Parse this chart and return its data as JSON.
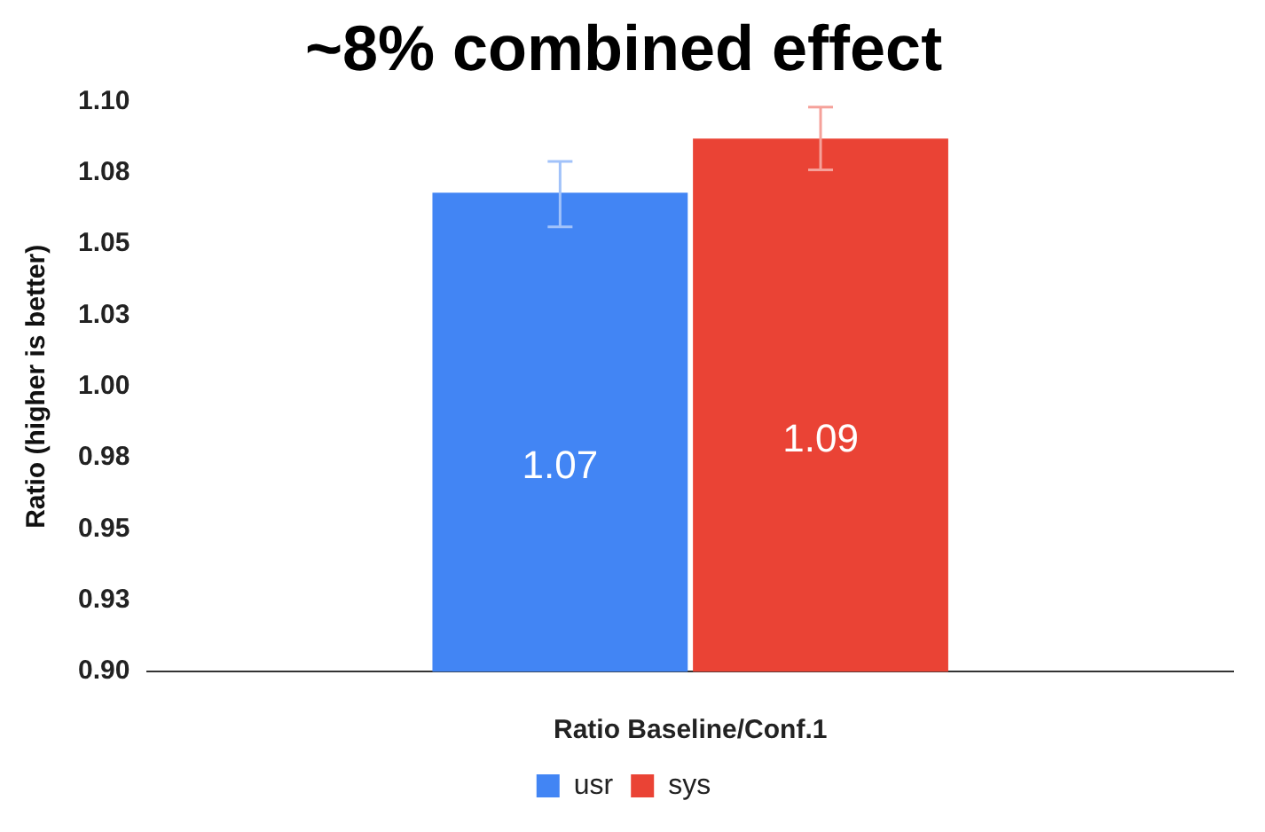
{
  "chart_data": {
    "type": "bar",
    "title": "~8% combined effect",
    "xlabel": "Ratio Baseline/Conf.1",
    "ylabel": "Ratio (higher is better)",
    "categories": [
      null
    ],
    "series": [
      {
        "name": "usr",
        "color": "#4285f4",
        "values": [
          1.068
        ],
        "value_labels": [
          "1.07"
        ],
        "errors": [
          [
            1.056,
            1.079
          ]
        ]
      },
      {
        "name": "sys",
        "color": "#ea4335",
        "values": [
          1.087
        ],
        "value_labels": [
          "1.09"
        ],
        "errors": [
          [
            1.076,
            1.098
          ]
        ]
      }
    ],
    "ylim": [
      0.9,
      1.1
    ],
    "yticks": [
      {
        "value": 0.9,
        "label": "0.90"
      },
      {
        "value": 0.925,
        "label": "0.93"
      },
      0.95,
      {
        "value": 0.975,
        "label": "0.98"
      },
      {
        "value": 1.0,
        "label": "1.00"
      },
      {
        "value": 1.025,
        "label": "1.03"
      },
      1.05,
      {
        "value": 1.075,
        "label": "1.08"
      },
      {
        "value": 1.1,
        "label": "1.10"
      }
    ],
    "grid": false,
    "legend": "bottom"
  }
}
